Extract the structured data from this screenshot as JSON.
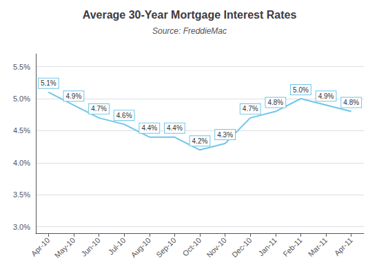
{
  "chart_data": {
    "type": "line",
    "title": "Average 30-Year Mortgage Interest Rates",
    "subtitle": "Source: FreddieMac",
    "categories": [
      "Apr-10",
      "May-10",
      "Jun-10",
      "Jul-10",
      "Aug-10",
      "Sep-10",
      "Oct-10",
      "Nov-10",
      "Dec-10",
      "Jan-11",
      "Feb-11",
      "Mar-11",
      "Apr-11"
    ],
    "values": [
      5.1,
      4.9,
      4.7,
      4.6,
      4.4,
      4.4,
      4.2,
      4.3,
      4.7,
      4.8,
      5.0,
      4.9,
      4.8
    ],
    "value_labels": [
      "5.1%",
      "4.9%",
      "4.7%",
      "4.6%",
      "4.4%",
      "4.4%",
      "4.2%",
      "4.3%",
      "4.7%",
      "4.8%",
      "5.0%",
      "4.9%",
      "4.8%"
    ],
    "color": "#6ec6e8",
    "ylim": [
      2.9,
      5.7
    ],
    "yticks": [
      {
        "value": 3.0,
        "label": "3.0%"
      },
      {
        "value": 3.5,
        "label": "3.5%"
      },
      {
        "value": 4.0,
        "label": "4.0%"
      },
      {
        "value": 4.5,
        "label": "4.5%"
      },
      {
        "value": 5.0,
        "label": "5.0%"
      },
      {
        "value": 5.5,
        "label": "5.5%"
      }
    ],
    "grid": true,
    "data_labels": true
  }
}
